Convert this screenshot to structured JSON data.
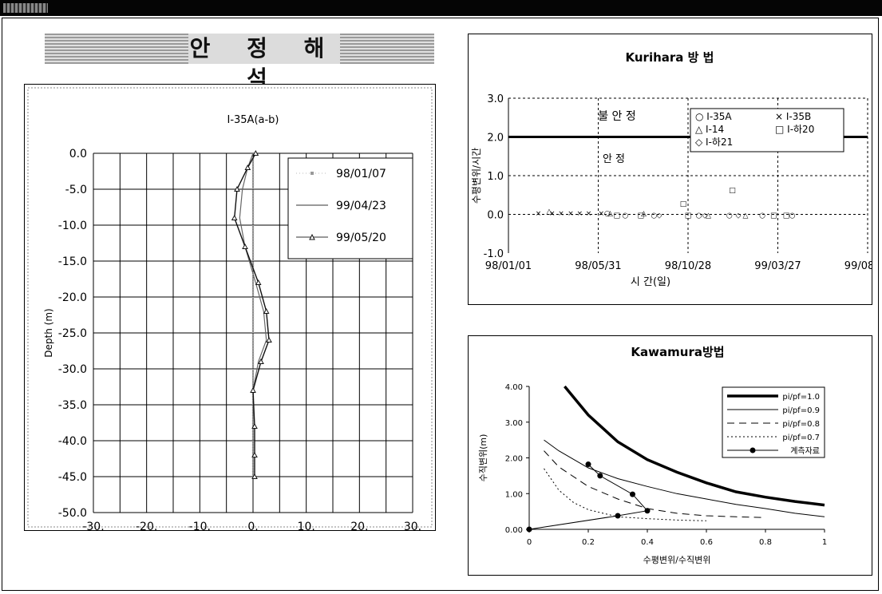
{
  "page": {
    "section_title": "안 정 해 석"
  },
  "chart_data": [
    {
      "type": "line",
      "title": "I-35A(a-b)",
      "xlabel": "",
      "ylabel": "Depth (m)",
      "xlim": [
        -30,
        30
      ],
      "ylim": [
        -50,
        0
      ],
      "x_tick_labels": [
        "-30.",
        "-20.",
        "-10.",
        "0.",
        "10.",
        "20.",
        "30."
      ],
      "y_tick_labels": [
        "0.0",
        "-5.0",
        "-10.0",
        "-15.0",
        "-20.0",
        "-25.0",
        "-30.0",
        "-35.0",
        "-40.0",
        "-45.0",
        "-50.0"
      ],
      "grid": true,
      "legend_position": "top-right",
      "series": [
        {
          "name": "98/01/07",
          "x": [
            0,
            0,
            0,
            0,
            0,
            0,
            0,
            0,
            0,
            0,
            0
          ],
          "y": [
            0,
            -5,
            -10,
            -15,
            -20,
            -25,
            -30,
            -35,
            -40,
            -45,
            -45
          ]
        },
        {
          "name": "99/04/23",
          "x": [
            0,
            -1,
            -2,
            -2.5,
            -1.5,
            0.5,
            2,
            2.5,
            1,
            0,
            0,
            0,
            0
          ],
          "y": [
            0,
            -2,
            -5,
            -9,
            -13,
            -18,
            -22,
            -26,
            -29,
            -33,
            -38,
            -42,
            -45
          ]
        },
        {
          "name": "99/05/20",
          "x": [
            0.5,
            -1,
            -3,
            -3.5,
            -1.5,
            1,
            2.5,
            3,
            1.5,
            0,
            0.3,
            0.3,
            0.3
          ],
          "y": [
            0,
            -2,
            -5,
            -9,
            -13,
            -18,
            -22,
            -26,
            -29,
            -33,
            -38,
            -42,
            -45
          ]
        }
      ]
    },
    {
      "type": "scatter",
      "title": "Kurihara 방 법",
      "xlabel": "시 간(일)",
      "ylabel": "수평변위/시간",
      "x_tick_labels": [
        "98/01/01",
        "98/05/31",
        "98/10/28",
        "99/03/27",
        "99/08/24"
      ],
      "y_tick_labels": [
        "3.0",
        "2.0",
        "1.0",
        "0.0",
        "-1.0"
      ],
      "ylim": [
        -1,
        3
      ],
      "grid": true,
      "legend_position": "top-right",
      "zone_labels": [
        "불 안 정",
        "안 정"
      ],
      "threshold": 2.0,
      "series": [
        {
          "name": "I-35A",
          "marker": "○",
          "x": [
            "98/06/15",
            "98/07/15",
            "98/09/01",
            "98/11/15",
            "99/01/05",
            "99/03/01",
            "99/04/20"
          ],
          "y": [
            0.05,
            0,
            0,
            0,
            0,
            0,
            0
          ]
        },
        {
          "name": "I-35B",
          "marker": "×",
          "x": [
            "98/02/20",
            "98/03/15",
            "98/03/30",
            "98/04/15",
            "98/04/30",
            "98/05/15",
            "98/06/05"
          ],
          "y": [
            0.05,
            0.05,
            0.05,
            0.05,
            0.05,
            0.05,
            0.05
          ]
        },
        {
          "name": "I-14",
          "marker": "△",
          "x": [
            "98/03/10",
            "98/06/20",
            "98/08/15",
            "98/12/01",
            "99/02/01"
          ],
          "y": [
            0.1,
            0.05,
            0.05,
            0,
            0
          ]
        },
        {
          "name": "I-하20",
          "marker": "□",
          "x": [
            "98/07/01",
            "98/08/10",
            "98/10/20",
            "98/10/28",
            "99/01/10",
            "99/03/20",
            "99/04/10"
          ],
          "y": [
            0,
            0,
            0.3,
            0,
            0.65,
            0,
            0
          ]
        },
        {
          "name": "I-하21",
          "marker": "◇",
          "x": [
            "98/09/10",
            "98/11/25",
            "99/01/20"
          ],
          "y": [
            0,
            0,
            0
          ]
        }
      ]
    },
    {
      "type": "line",
      "title": "Kawamura방법",
      "xlabel": "수평변위/수직변위",
      "ylabel": "수직변위(m)",
      "xlim": [
        0,
        1
      ],
      "ylim": [
        0,
        4
      ],
      "x_tick_labels": [
        "0",
        "0.2",
        "0.4",
        "0.6",
        "0.8",
        "1"
      ],
      "y_tick_labels": [
        "4.00",
        "3.00",
        "2.00",
        "1.00",
        "0.00"
      ],
      "grid": false,
      "legend_position": "top-right",
      "series": [
        {
          "name": "pi/pf=1.0",
          "x": [
            0.12,
            0.2,
            0.3,
            0.4,
            0.5,
            0.6,
            0.7,
            0.8,
            0.9,
            1.0
          ],
          "y": [
            4.0,
            3.2,
            2.45,
            1.95,
            1.6,
            1.3,
            1.05,
            0.9,
            0.78,
            0.68
          ]
        },
        {
          "name": "pi/pf=0.9",
          "x": [
            0.05,
            0.1,
            0.2,
            0.3,
            0.4,
            0.5,
            0.6,
            0.7,
            0.8,
            0.9,
            1.0
          ],
          "y": [
            2.5,
            2.2,
            1.72,
            1.42,
            1.2,
            1.0,
            0.85,
            0.7,
            0.58,
            0.45,
            0.35
          ]
        },
        {
          "name": "pi/pf=0.8",
          "x": [
            0.05,
            0.1,
            0.2,
            0.3,
            0.4,
            0.5,
            0.6,
            0.7,
            0.8
          ],
          "y": [
            2.2,
            1.75,
            1.2,
            0.85,
            0.58,
            0.45,
            0.38,
            0.35,
            0.33
          ]
        },
        {
          "name": "pi/pf=0.7",
          "x": [
            0.05,
            0.1,
            0.15,
            0.2,
            0.3,
            0.4,
            0.5,
            0.6
          ],
          "y": [
            1.7,
            1.1,
            0.75,
            0.55,
            0.35,
            0.3,
            0.26,
            0.24
          ]
        },
        {
          "name": "계측자료",
          "x": [
            0,
            0.3,
            0.4,
            0.35,
            0.24,
            0.2
          ],
          "y": [
            0,
            0.38,
            0.52,
            0.98,
            1.5,
            1.82
          ]
        }
      ]
    }
  ]
}
